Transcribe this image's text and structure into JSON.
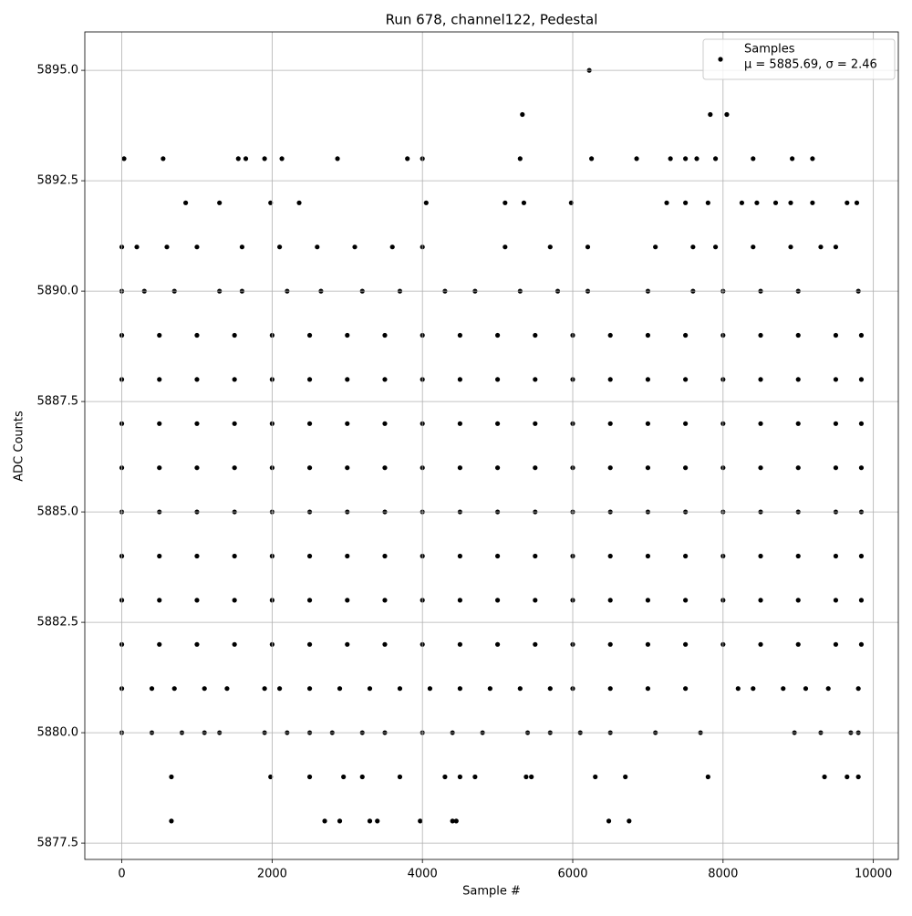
{
  "chart_data": {
    "type": "scatter",
    "title": "Run 678, channel122, Pedestal",
    "x_label": "Sample #",
    "y_label": "ADC Counts",
    "series": [
      {
        "name": "Samples",
        "color": "#000000",
        "x": [
          0,
          500,
          1000,
          1500,
          2000,
          2500,
          3000,
          3500,
          4000,
          4500,
          5000,
          5500,
          6000,
          6500,
          7000,
          7500,
          8000,
          8500,
          9000,
          9500,
          9840,
          0,
          500,
          1000,
          1500,
          2000,
          2500,
          3000,
          3500,
          4000,
          4500,
          5000,
          5500,
          6000,
          6500,
          7000,
          7500,
          8000,
          8500,
          9000,
          9500,
          9840,
          0,
          500,
          1000,
          1500,
          2000,
          2500,
          3000,
          3500,
          4000,
          4500,
          5000,
          5500,
          6000,
          6500,
          7000,
          7500,
          8000,
          8500,
          9000,
          9500,
          9840,
          0,
          500,
          1000,
          1500,
          2000,
          2500,
          3000,
          3500,
          4000,
          4500,
          5000,
          5500,
          6000,
          6500,
          7000,
          7500,
          8000,
          8500,
          9000,
          9500,
          9840,
          0,
          500,
          1000,
          1500,
          2000,
          2500,
          3000,
          3500,
          4000,
          4500,
          5000,
          5500,
          6000,
          6500,
          7000,
          7500,
          8000,
          8500,
          9000,
          9500,
          9840,
          0,
          500,
          1000,
          1500,
          2000,
          2500,
          3000,
          3500,
          4000,
          4500,
          5000,
          5500,
          6000,
          6500,
          7000,
          7500,
          8000,
          8500,
          9000,
          9500,
          9840,
          0,
          500,
          1000,
          1500,
          2000,
          2500,
          3000,
          3500,
          4000,
          4500,
          5000,
          5500,
          6000,
          6500,
          7000,
          7500,
          8000,
          8500,
          9000,
          9500,
          9840,
          0,
          500,
          1000,
          1500,
          2000,
          2500,
          3000,
          3500,
          4000,
          4500,
          5000,
          5500,
          6000,
          6500,
          7000,
          7500,
          8000,
          8500,
          9000,
          9500,
          9840,
          0,
          300,
          700,
          1300,
          1600,
          2200,
          2650,
          3200,
          3700,
          4300,
          4700,
          5300,
          5800,
          6200,
          7000,
          7600,
          8000,
          8500,
          9000,
          9800,
          0,
          200,
          600,
          1000,
          1600,
          2100,
          2600,
          3100,
          3600,
          4000,
          5100,
          5700,
          6200,
          7100,
          7600,
          7900,
          8400,
          8900,
          9300,
          9500,
          0,
          400,
          800,
          1100,
          1300,
          1900,
          2200,
          2500,
          2800,
          3200,
          3500,
          4000,
          4400,
          4800,
          5400,
          5700,
          6100,
          6500,
          7100,
          7700,
          8950,
          9300,
          9700,
          9800,
          0,
          400,
          700,
          1100,
          1400,
          1900,
          2100,
          2500,
          2900,
          3300,
          3700,
          4100,
          4500,
          4900,
          5300,
          5700,
          6000,
          6500,
          7000,
          7500,
          8200,
          8400,
          8800,
          9100,
          9400,
          9800,
          850,
          1300,
          1980,
          2360,
          4050,
          5100,
          5350,
          5980,
          7250,
          7500,
          7800,
          8250,
          8450,
          8700,
          8900,
          9190,
          9650,
          9780,
          660,
          1980,
          2500,
          2950,
          3200,
          3700,
          4300,
          4500,
          4700,
          5380,
          5450,
          6300,
          6700,
          7800,
          9350,
          9650,
          9800,
          30,
          550,
          1550,
          1650,
          1900,
          2130,
          2870,
          3800,
          4000,
          5300,
          6250,
          6850,
          7300,
          7500,
          7650,
          7900,
          8400,
          8920,
          9190,
          660,
          2700,
          2900,
          3300,
          3400,
          3970,
          4400,
          4450,
          6480,
          6750,
          5330,
          7830,
          8050,
          6220
        ],
        "values": [
          5889,
          5889,
          5889,
          5889,
          5889,
          5889,
          5889,
          5889,
          5889,
          5889,
          5889,
          5889,
          5889,
          5889,
          5889,
          5889,
          5889,
          5889,
          5889,
          5889,
          5889,
          5888,
          5888,
          5888,
          5888,
          5888,
          5888,
          5888,
          5888,
          5888,
          5888,
          5888,
          5888,
          5888,
          5888,
          5888,
          5888,
          5888,
          5888,
          5888,
          5888,
          5888,
          5887,
          5887,
          5887,
          5887,
          5887,
          5887,
          5887,
          5887,
          5887,
          5887,
          5887,
          5887,
          5887,
          5887,
          5887,
          5887,
          5887,
          5887,
          5887,
          5887,
          5887,
          5886,
          5886,
          5886,
          5886,
          5886,
          5886,
          5886,
          5886,
          5886,
          5886,
          5886,
          5886,
          5886,
          5886,
          5886,
          5886,
          5886,
          5886,
          5886,
          5886,
          5886,
          5885,
          5885,
          5885,
          5885,
          5885,
          5885,
          5885,
          5885,
          5885,
          5885,
          5885,
          5885,
          5885,
          5885,
          5885,
          5885,
          5885,
          5885,
          5885,
          5885,
          5885,
          5884,
          5884,
          5884,
          5884,
          5884,
          5884,
          5884,
          5884,
          5884,
          5884,
          5884,
          5884,
          5884,
          5884,
          5884,
          5884,
          5884,
          5884,
          5884,
          5884,
          5884,
          5883,
          5883,
          5883,
          5883,
          5883,
          5883,
          5883,
          5883,
          5883,
          5883,
          5883,
          5883,
          5883,
          5883,
          5883,
          5883,
          5883,
          5883,
          5883,
          5883,
          5883,
          5882,
          5882,
          5882,
          5882,
          5882,
          5882,
          5882,
          5882,
          5882,
          5882,
          5882,
          5882,
          5882,
          5882,
          5882,
          5882,
          5882,
          5882,
          5882,
          5882,
          5882,
          5890,
          5890,
          5890,
          5890,
          5890,
          5890,
          5890,
          5890,
          5890,
          5890,
          5890,
          5890,
          5890,
          5890,
          5890,
          5890,
          5890,
          5890,
          5890,
          5890,
          5891,
          5891,
          5891,
          5891,
          5891,
          5891,
          5891,
          5891,
          5891,
          5891,
          5891,
          5891,
          5891,
          5891,
          5891,
          5891,
          5891,
          5891,
          5891,
          5891,
          5880,
          5880,
          5880,
          5880,
          5880,
          5880,
          5880,
          5880,
          5880,
          5880,
          5880,
          5880,
          5880,
          5880,
          5880,
          5880,
          5880,
          5880,
          5880,
          5880,
          5880,
          5880,
          5880,
          5880,
          5881,
          5881,
          5881,
          5881,
          5881,
          5881,
          5881,
          5881,
          5881,
          5881,
          5881,
          5881,
          5881,
          5881,
          5881,
          5881,
          5881,
          5881,
          5881,
          5881,
          5881,
          5881,
          5881,
          5881,
          5881,
          5881,
          5892,
          5892,
          5892,
          5892,
          5892,
          5892,
          5892,
          5892,
          5892,
          5892,
          5892,
          5892,
          5892,
          5892,
          5892,
          5892,
          5892,
          5892,
          5879,
          5879,
          5879,
          5879,
          5879,
          5879,
          5879,
          5879,
          5879,
          5879,
          5879,
          5879,
          5879,
          5879,
          5879,
          5879,
          5879,
          5893,
          5893,
          5893,
          5893,
          5893,
          5893,
          5893,
          5893,
          5893,
          5893,
          5893,
          5893,
          5893,
          5893,
          5893,
          5893,
          5893,
          5893,
          5893,
          5878,
          5878,
          5878,
          5878,
          5878,
          5878,
          5878,
          5878,
          5878,
          5878,
          5894,
          5894,
          5894,
          5895
        ]
      }
    ],
    "legend_stats": "μ = 5885.69, σ = 2.46",
    "xlim": [
      -492,
      10332
    ],
    "xticks": [
      0,
      2000,
      4000,
      6000,
      8000,
      10000
    ],
    "ylim": [
      5877.13,
      5895.87
    ],
    "yticks": [
      5877.5,
      {
        "value": 5880,
        "label": "5880.0"
      },
      5882.5,
      {
        "value": 5885,
        "label": "5885.0"
      },
      5887.5,
      {
        "value": 5890,
        "label": "5890.0"
      },
      5892.5,
      {
        "value": 5895,
        "label": "5895.0"
      }
    ],
    "grid": true,
    "legend": "upper right"
  }
}
